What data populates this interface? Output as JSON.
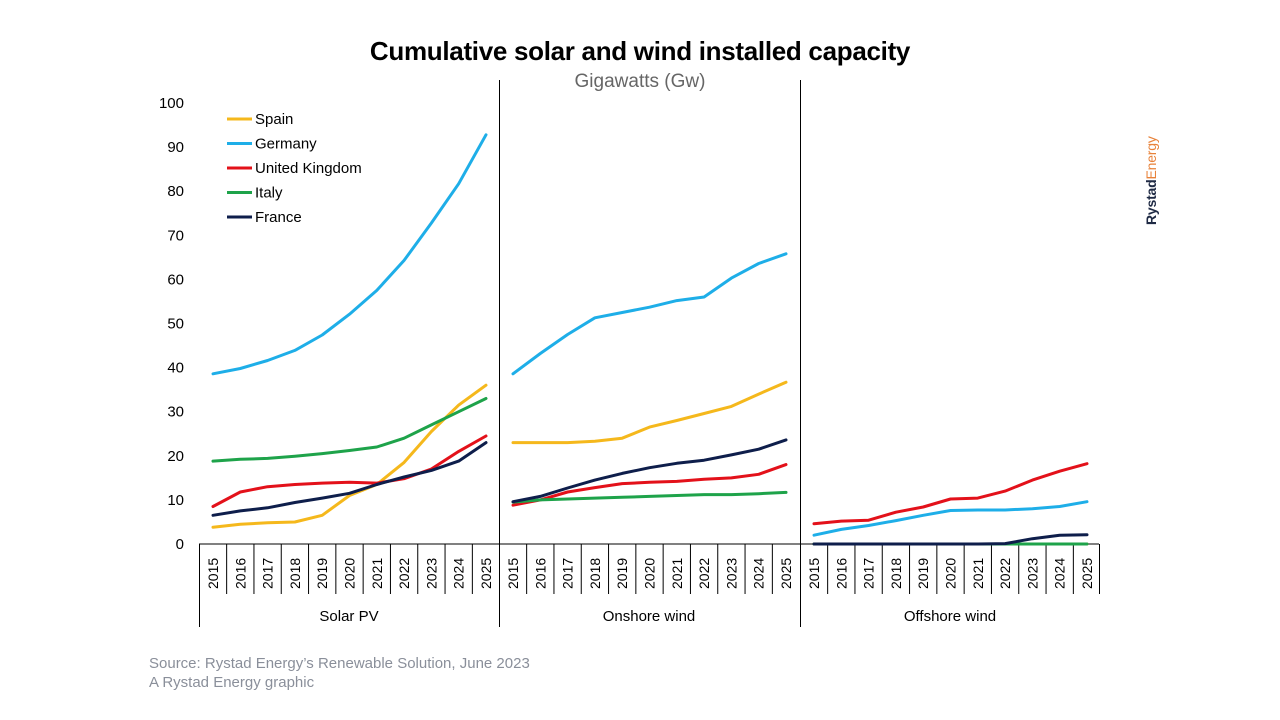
{
  "chart_data": {
    "type": "line",
    "title": "Cumulative solar and wind installed capacity",
    "subtitle": "Gigawatts (Gw)",
    "ylim": [
      0,
      100
    ],
    "yticks": [
      0,
      10,
      20,
      30,
      40,
      50,
      60,
      70,
      80,
      90,
      100
    ],
    "x": [
      "2015",
      "2016",
      "2017",
      "2018",
      "2019",
      "2020",
      "2021",
      "2022",
      "2023",
      "2024",
      "2025"
    ],
    "legend_position": "top-left",
    "panels": [
      {
        "label": "Solar PV",
        "series": [
          {
            "name": "Spain",
            "color": "#f5b81c",
            "values": [
              3.8,
              4.5,
              4.8,
              5.0,
              6.5,
              11.0,
              13.5,
              18.5,
              25.5,
              31.5,
              36.0
            ]
          },
          {
            "name": "Germany",
            "color": "#1eaee8",
            "values": [
              38.6,
              39.8,
              41.6,
              43.9,
              47.4,
              52.1,
              57.5,
              64.3,
              72.8,
              81.7,
              92.8
            ]
          },
          {
            "name": "United Kingdom",
            "color": "#e3111a",
            "values": [
              8.5,
              11.8,
              13.0,
              13.5,
              13.8,
              14.0,
              13.8,
              14.8,
              17.0,
              21.0,
              24.5
            ]
          },
          {
            "name": "Italy",
            "color": "#1ea34a",
            "values": [
              18.8,
              19.2,
              19.4,
              19.9,
              20.5,
              21.2,
              22.0,
              24.0,
              27.0,
              30.0,
              33.0
            ]
          },
          {
            "name": "France",
            "color": "#0e1e4b",
            "values": [
              6.5,
              7.5,
              8.2,
              9.4,
              10.4,
              11.5,
              13.5,
              15.2,
              16.7,
              18.8,
              23.0
            ]
          }
        ]
      },
      {
        "label": "Onshore wind",
        "series": [
          {
            "name": "Spain",
            "color": "#f5b81c",
            "values": [
              23.0,
              23.0,
              23.0,
              23.3,
              24.0,
              26.5,
              28.0,
              29.6,
              31.2,
              34.0,
              36.7
            ]
          },
          {
            "name": "Germany",
            "color": "#1eaee8",
            "values": [
              38.6,
              43.2,
              47.5,
              51.3,
              52.5,
              53.7,
              55.2,
              56.0,
              60.3,
              63.6,
              65.8
            ]
          },
          {
            "name": "United Kingdom",
            "color": "#e3111a",
            "values": [
              8.8,
              10.0,
              11.8,
              12.8,
              13.7,
              14.0,
              14.2,
              14.7,
              15.0,
              15.8,
              18.0
            ]
          },
          {
            "name": "Italy",
            "color": "#1ea34a",
            "values": [
              9.5,
              10.0,
              10.2,
              10.4,
              10.6,
              10.8,
              11.0,
              11.2,
              11.2,
              11.4,
              11.7
            ]
          },
          {
            "name": "France",
            "color": "#0e1e4b",
            "values": [
              9.6,
              10.8,
              12.7,
              14.5,
              16.0,
              17.3,
              18.3,
              19.0,
              20.2,
              21.5,
              23.6
            ]
          }
        ]
      },
      {
        "label": "Offshore wind",
        "series": [
          {
            "name": "Spain",
            "color": "#f5b81c",
            "values": [
              0,
              0,
              0,
              0,
              0,
              0,
              0,
              0,
              0,
              0,
              0
            ]
          },
          {
            "name": "Germany",
            "color": "#1eaee8",
            "values": [
              2.0,
              3.3,
              4.2,
              5.3,
              6.5,
              7.6,
              7.7,
              7.7,
              8.0,
              8.5,
              9.6
            ]
          },
          {
            "name": "United Kingdom",
            "color": "#e3111a",
            "values": [
              4.6,
              5.2,
              5.4,
              7.2,
              8.4,
              10.2,
              10.4,
              12.0,
              14.5,
              16.5,
              18.2
            ]
          },
          {
            "name": "Italy",
            "color": "#1ea34a",
            "values": [
              0,
              0,
              0,
              0,
              0,
              0,
              0,
              0,
              0,
              0,
              0
            ]
          },
          {
            "name": "France",
            "color": "#0e1e4b",
            "values": [
              0,
              0,
              0,
              0,
              0,
              0,
              0,
              0.1,
              1.2,
              2.0,
              2.1
            ]
          }
        ]
      }
    ],
    "legend": [
      {
        "name": "Spain",
        "color": "#f5b81c"
      },
      {
        "name": "Germany",
        "color": "#1eaee8"
      },
      {
        "name": "United Kingdom",
        "color": "#e3111a"
      },
      {
        "name": "Italy",
        "color": "#1ea34a"
      },
      {
        "name": "France",
        "color": "#0e1e4b"
      }
    ]
  },
  "footer": {
    "source": "Source: Rystad Energy’s Renewable Solution, June 2023",
    "credit": "A Rystad Energy graphic"
  },
  "brand": {
    "part1": "Rystad",
    "part2": "Energy"
  }
}
